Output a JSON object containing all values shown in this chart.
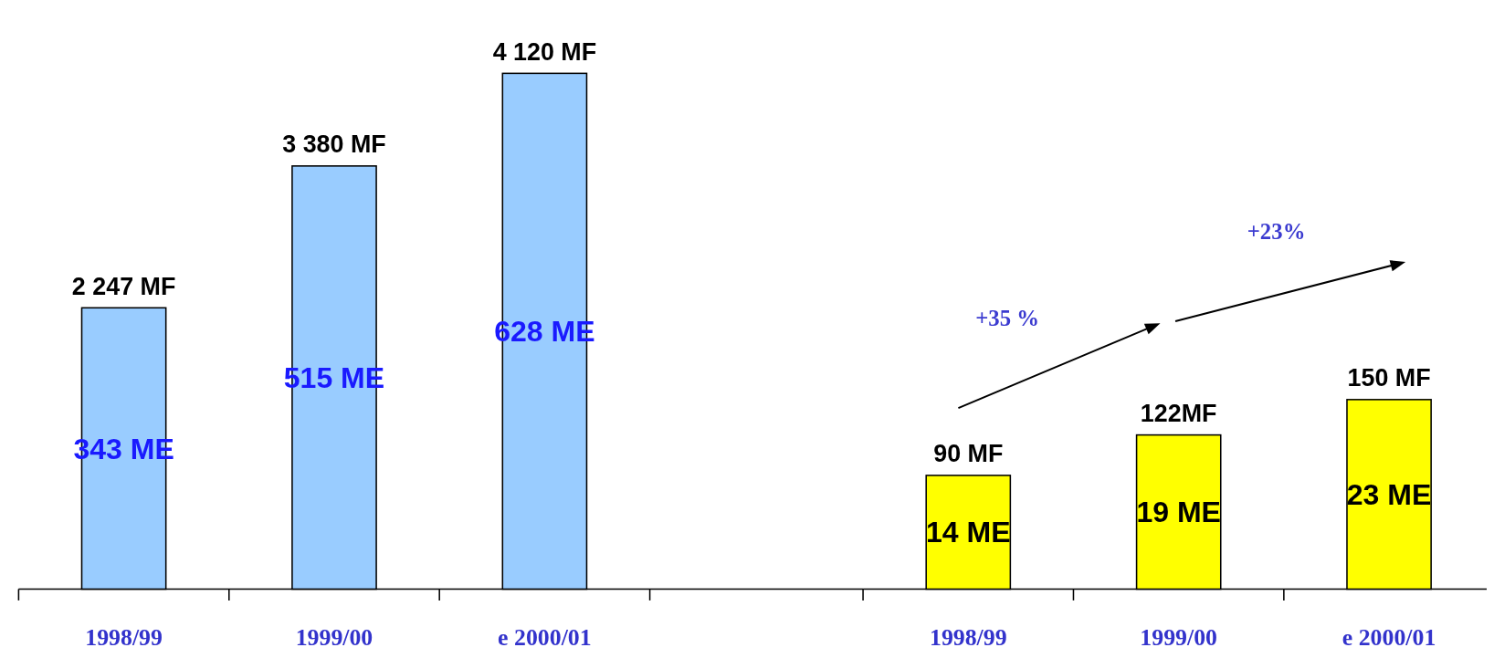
{
  "chart_data": [
    {
      "type": "bar",
      "categories": [
        "1998/99",
        "1999/00",
        "e 2000/01"
      ],
      "values": [
        2247,
        3380,
        4120
      ],
      "color": "#99ccff",
      "value_labels": [
        "2 247 MF",
        "3 380 MF",
        "4 120 MF"
      ],
      "annotations": [
        "343 ME",
        "515 ME",
        "628 ME"
      ]
    },
    {
      "type": "bar",
      "categories": [
        "1998/99",
        "1999/00",
        "e 2000/01"
      ],
      "values": [
        90,
        122,
        150
      ],
      "color": "#ffff00",
      "value_labels": [
        "90 MF",
        "122MF",
        "150 MF"
      ],
      "annotations": [
        "14 ME",
        "19 ME",
        "23 ME",
        "+35 %",
        "+23%"
      ]
    }
  ]
}
